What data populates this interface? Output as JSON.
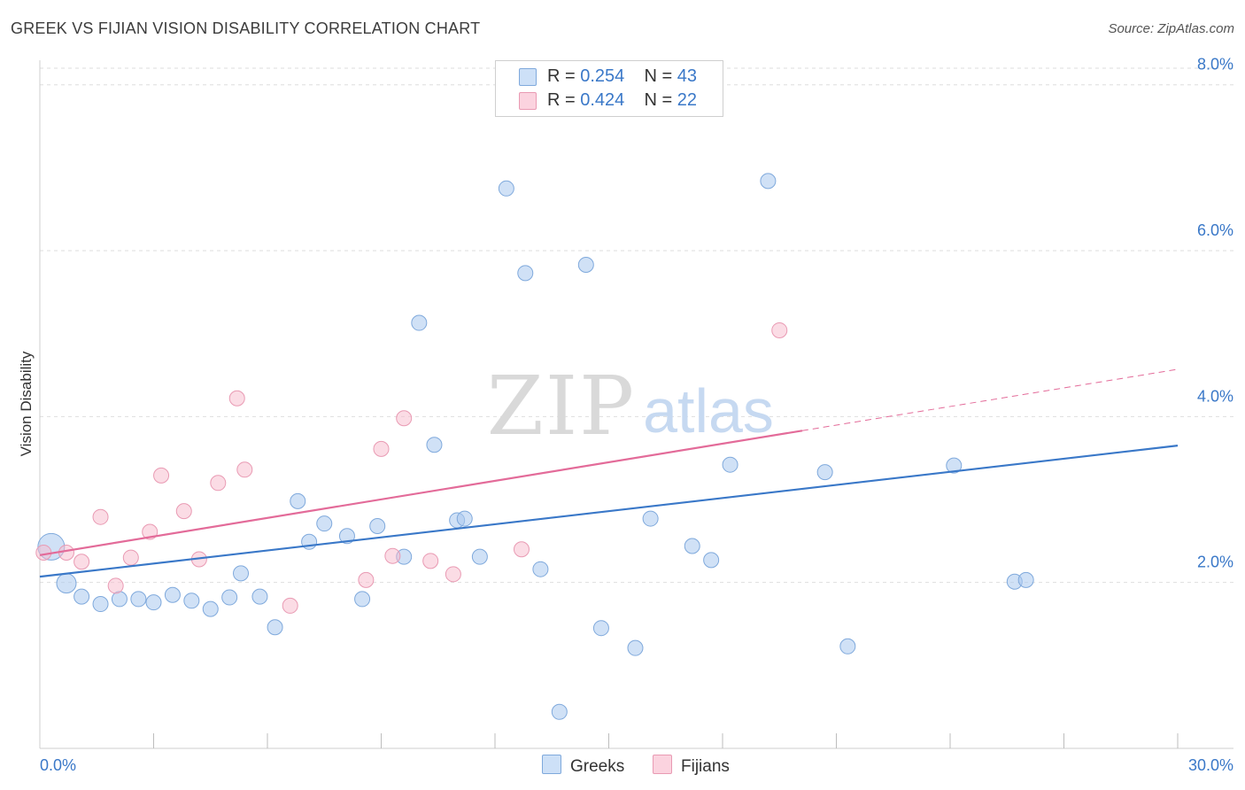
{
  "title": "GREEK VS FIJIAN VISION DISABILITY CORRELATION CHART",
  "source": "Source: ZipAtlas.com",
  "watermark": {
    "zip": "ZIP",
    "atlas": "atlas"
  },
  "legend_top": [
    {
      "r_label": "R = ",
      "r": "0.254",
      "n_label": "N = ",
      "n": "43",
      "color": "#a9c9ef"
    },
    {
      "r_label": "R = ",
      "r": "0.424",
      "n_label": "N = ",
      "n": "22",
      "color": "#f7b9cb"
    }
  ],
  "legend_bottom": [
    {
      "label": "Greeks",
      "color": "#a9c9ef"
    },
    {
      "label": "Fijians",
      "color": "#f7b9cb"
    }
  ],
  "chart_data": {
    "type": "scatter",
    "title": "GREEK VS FIJIAN VISION DISABILITY CORRELATION CHART",
    "xlabel": "",
    "ylabel": "Vision Disability",
    "xlim": [
      0,
      30
    ],
    "ylim": [
      0,
      8.2
    ],
    "x_tick_labels": [
      "0.0%",
      "30.0%"
    ],
    "y_ticks": [
      2,
      4,
      6,
      8
    ],
    "y_tick_labels": [
      "2.0%",
      "4.0%",
      "6.0%",
      "8.0%"
    ],
    "grid": true,
    "legend_position": "top-center",
    "series": [
      {
        "name": "Greeks",
        "color": "#3a78c8",
        "fill": "#a9c9ef",
        "trend": {
          "x": [
            0,
            30
          ],
          "y": [
            2.07,
            3.65
          ]
        },
        "points": [
          {
            "x": 0.3,
            "y": 2.43,
            "big": true
          },
          {
            "x": 0.7,
            "y": 1.99,
            "big": true
          },
          {
            "x": 1.1,
            "y": 1.83
          },
          {
            "x": 1.6,
            "y": 1.74
          },
          {
            "x": 2.1,
            "y": 1.8
          },
          {
            "x": 2.6,
            "y": 1.8
          },
          {
            "x": 3.0,
            "y": 1.76
          },
          {
            "x": 3.5,
            "y": 1.85
          },
          {
            "x": 4.0,
            "y": 1.78
          },
          {
            "x": 4.5,
            "y": 1.68
          },
          {
            "x": 5.0,
            "y": 1.82
          },
          {
            "x": 5.3,
            "y": 2.11
          },
          {
            "x": 5.8,
            "y": 1.83
          },
          {
            "x": 6.2,
            "y": 1.46
          },
          {
            "x": 6.8,
            "y": 2.98
          },
          {
            "x": 7.1,
            "y": 2.49
          },
          {
            "x": 7.5,
            "y": 2.71
          },
          {
            "x": 8.1,
            "y": 2.56
          },
          {
            "x": 8.5,
            "y": 1.8
          },
          {
            "x": 8.9,
            "y": 2.68
          },
          {
            "x": 9.6,
            "y": 2.31
          },
          {
            "x": 10.0,
            "y": 5.13
          },
          {
            "x": 10.4,
            "y": 3.66
          },
          {
            "x": 11.0,
            "y": 2.75
          },
          {
            "x": 11.2,
            "y": 2.77
          },
          {
            "x": 11.6,
            "y": 2.31
          },
          {
            "x": 12.3,
            "y": 6.75
          },
          {
            "x": 12.8,
            "y": 5.73
          },
          {
            "x": 13.2,
            "y": 2.16
          },
          {
            "x": 13.7,
            "y": 0.44
          },
          {
            "x": 14.4,
            "y": 5.83
          },
          {
            "x": 14.8,
            "y": 1.45
          },
          {
            "x": 15.7,
            "y": 1.21
          },
          {
            "x": 16.1,
            "y": 2.77
          },
          {
            "x": 17.2,
            "y": 2.44
          },
          {
            "x": 17.7,
            "y": 2.27
          },
          {
            "x": 18.2,
            "y": 3.42
          },
          {
            "x": 19.2,
            "y": 6.84
          },
          {
            "x": 20.7,
            "y": 3.33
          },
          {
            "x": 21.3,
            "y": 1.23
          },
          {
            "x": 24.1,
            "y": 3.41
          },
          {
            "x": 25.7,
            "y": 2.01
          },
          {
            "x": 26.0,
            "y": 2.03
          }
        ]
      },
      {
        "name": "Fijians",
        "color": "#e36b99",
        "fill": "#f7b9cb",
        "trend": {
          "x": [
            0,
            20.1
          ],
          "y": [
            2.33,
            3.83
          ]
        },
        "trend_dashed": {
          "x": [
            20.1,
            30
          ],
          "y": [
            3.83,
            4.57
          ]
        },
        "points": [
          {
            "x": 0.1,
            "y": 2.36
          },
          {
            "x": 0.7,
            "y": 2.36
          },
          {
            "x": 1.1,
            "y": 2.25
          },
          {
            "x": 1.6,
            "y": 2.79
          },
          {
            "x": 2.0,
            "y": 1.96
          },
          {
            "x": 2.4,
            "y": 2.3
          },
          {
            "x": 2.9,
            "y": 2.61
          },
          {
            "x": 3.2,
            "y": 3.29
          },
          {
            "x": 3.8,
            "y": 2.86
          },
          {
            "x": 4.2,
            "y": 2.28
          },
          {
            "x": 4.7,
            "y": 3.2
          },
          {
            "x": 5.2,
            "y": 4.22
          },
          {
            "x": 5.4,
            "y": 3.36
          },
          {
            "x": 6.6,
            "y": 1.72
          },
          {
            "x": 8.6,
            "y": 2.03
          },
          {
            "x": 9.0,
            "y": 3.61
          },
          {
            "x": 9.3,
            "y": 2.32
          },
          {
            "x": 9.6,
            "y": 3.98
          },
          {
            "x": 10.3,
            "y": 2.26
          },
          {
            "x": 10.9,
            "y": 2.1
          },
          {
            "x": 12.7,
            "y": 2.4
          },
          {
            "x": 19.5,
            "y": 5.04
          }
        ]
      }
    ]
  }
}
